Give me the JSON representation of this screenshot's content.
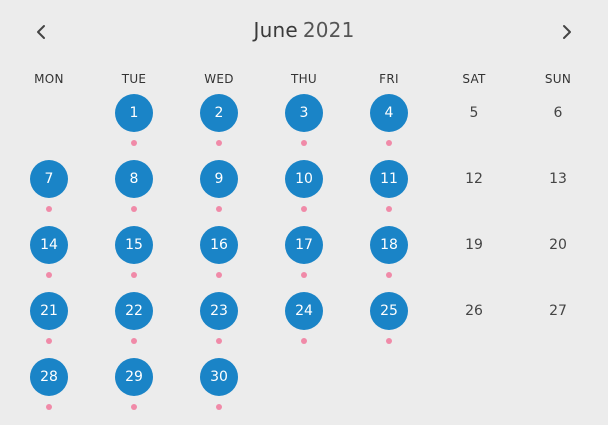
{
  "header": {
    "month": "June",
    "year": "2021",
    "prev_icon": "chevron-left-icon",
    "next_icon": "chevron-right-icon"
  },
  "weekdays": [
    "MON",
    "TUE",
    "WED",
    "THU",
    "FRI",
    "SAT",
    "SUN"
  ],
  "colors": {
    "booked_day": "#1a84c7",
    "event_dot": "#f08aa8",
    "background": "#ececec"
  },
  "weeks": [
    [
      null,
      {
        "day": "1",
        "booked": true,
        "event": true
      },
      {
        "day": "2",
        "booked": true,
        "event": true
      },
      {
        "day": "3",
        "booked": true,
        "event": true
      },
      {
        "day": "4",
        "booked": true,
        "event": true
      },
      {
        "day": "5",
        "booked": false,
        "event": false
      },
      {
        "day": "6",
        "booked": false,
        "event": false
      }
    ],
    [
      {
        "day": "7",
        "booked": true,
        "event": true
      },
      {
        "day": "8",
        "booked": true,
        "event": true
      },
      {
        "day": "9",
        "booked": true,
        "event": true
      },
      {
        "day": "10",
        "booked": true,
        "event": true
      },
      {
        "day": "11",
        "booked": true,
        "event": true
      },
      {
        "day": "12",
        "booked": false,
        "event": false
      },
      {
        "day": "13",
        "booked": false,
        "event": false
      }
    ],
    [
      {
        "day": "14",
        "booked": true,
        "event": true
      },
      {
        "day": "15",
        "booked": true,
        "event": true
      },
      {
        "day": "16",
        "booked": true,
        "event": true
      },
      {
        "day": "17",
        "booked": true,
        "event": true
      },
      {
        "day": "18",
        "booked": true,
        "event": true
      },
      {
        "day": "19",
        "booked": false,
        "event": false
      },
      {
        "day": "20",
        "booked": false,
        "event": false
      }
    ],
    [
      {
        "day": "21",
        "booked": true,
        "event": true
      },
      {
        "day": "22",
        "booked": true,
        "event": true
      },
      {
        "day": "23",
        "booked": true,
        "event": true
      },
      {
        "day": "24",
        "booked": true,
        "event": true
      },
      {
        "day": "25",
        "booked": true,
        "event": true
      },
      {
        "day": "26",
        "booked": false,
        "event": false
      },
      {
        "day": "27",
        "booked": false,
        "event": false
      }
    ],
    [
      {
        "day": "28",
        "booked": true,
        "event": true
      },
      {
        "day": "29",
        "booked": true,
        "event": true
      },
      {
        "day": "30",
        "booked": true,
        "event": true
      },
      null,
      null,
      null,
      null
    ]
  ]
}
